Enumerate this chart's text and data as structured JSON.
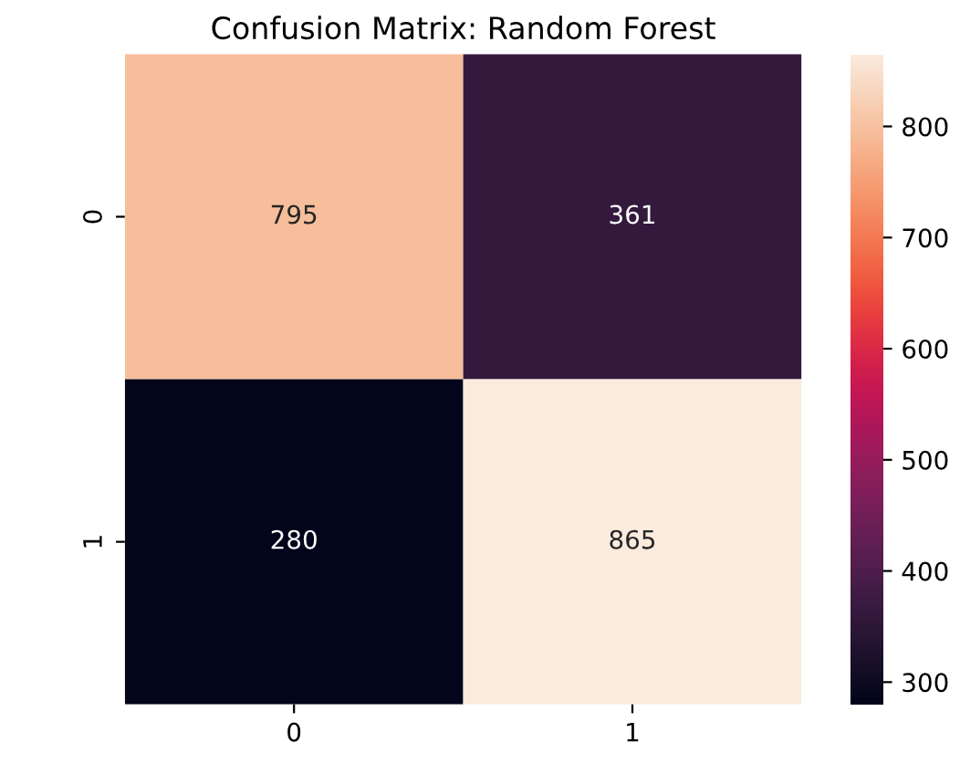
{
  "chart_data": {
    "type": "heatmap",
    "title": "Confusion Matrix: Random Forest",
    "categories": [
      "0",
      "1"
    ],
    "y_categories": [
      "0",
      "1"
    ],
    "cells": [
      [
        795,
        361
      ],
      [
        280,
        865
      ]
    ],
    "clim": [
      280,
      865
    ],
    "cticks": [
      300,
      400,
      500,
      600,
      700,
      800
    ],
    "data_labels": true
  }
}
